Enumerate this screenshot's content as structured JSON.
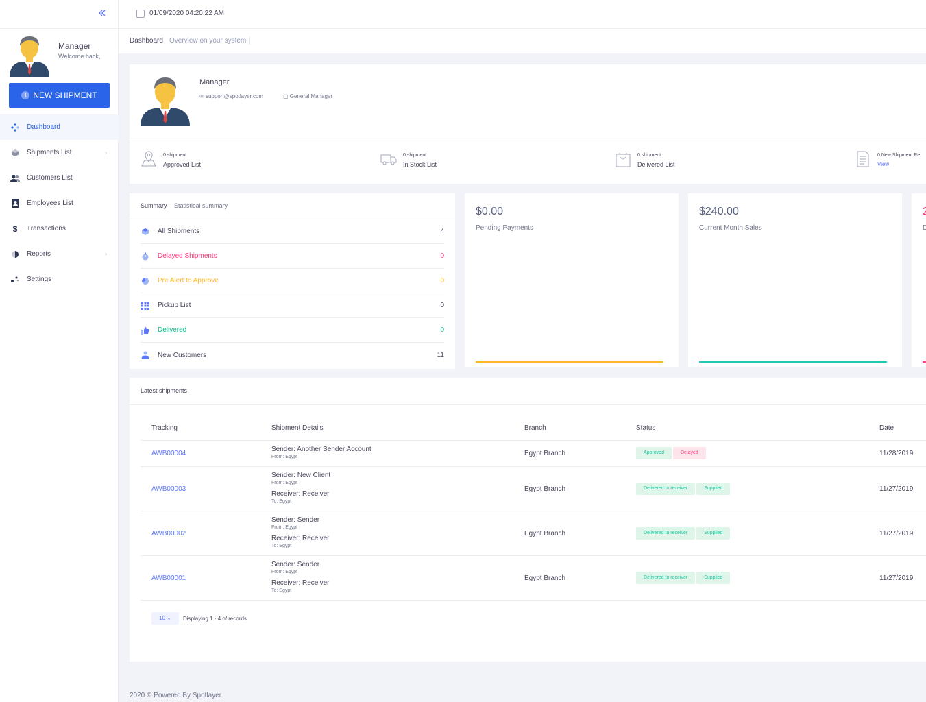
{
  "sidebar": {
    "user_name": "Manager",
    "user_greeting": "Welcome back,",
    "new_shipment_label": "NEW SHIPMENT",
    "menu": [
      {
        "label": "Dashboard",
        "icon": "dashboard-icon",
        "active": true
      },
      {
        "label": "Shipments List",
        "icon": "box-icon",
        "has_submenu": true
      },
      {
        "label": "Customers List",
        "icon": "users-icon"
      },
      {
        "label": "Employees List",
        "icon": "contact-book-icon"
      },
      {
        "label": "Transactions",
        "icon": "dollar-icon"
      },
      {
        "label": "Reports",
        "icon": "pie-chart-icon",
        "has_submenu": true
      },
      {
        "label": "Settings",
        "icon": "settings-dots-icon"
      }
    ]
  },
  "topbar": {
    "datetime": "01/09/2020 04:20:22 AM"
  },
  "subheader": {
    "title": "Dashboard",
    "description": "Overview on your system"
  },
  "profile": {
    "name": "Manager",
    "email": "support@spotlayer.com",
    "role": "General Manager",
    "stats": [
      {
        "count": "0 shipment",
        "label": "Approved List",
        "icon": "map-pin-icon"
      },
      {
        "count": "0 shipment",
        "label": "In Stock List",
        "icon": "truck-icon"
      },
      {
        "count": "0 shipment",
        "label": "Delivered List",
        "icon": "bag-icon"
      },
      {
        "count": "0 New Shipment Re",
        "link": "View",
        "icon": "document-icon"
      }
    ]
  },
  "summary": {
    "title": "Summary",
    "subtitle": "Statistical summary",
    "rows": [
      {
        "label": "All Shipments",
        "value": "4",
        "color": "#48465b",
        "icon": "cube-icon"
      },
      {
        "label": "Delayed Shipments",
        "value": "0",
        "color": "#fd397a",
        "icon": "stopwatch-icon"
      },
      {
        "label": "Pre Alert to Approve",
        "value": "0",
        "color": "#ffb822",
        "icon": "chart-pie-icon"
      },
      {
        "label": "Pickup List",
        "value": "0",
        "color": "#48465b",
        "icon": "grid-icon"
      },
      {
        "label": "Delivered",
        "value": "0",
        "color": "#0abb87",
        "icon": "thumbs-up-icon"
      },
      {
        "label": "New Customers",
        "value": "11",
        "color": "#48465b",
        "icon": "user-icon"
      }
    ]
  },
  "widgets": [
    {
      "value": "$0.00",
      "label": "Pending Payments",
      "line_color": "#ffb822"
    },
    {
      "value": "$240.00",
      "label": "Current Month Sales",
      "line_color": "#1dc9b7"
    },
    {
      "value": "2",
      "label": "D",
      "line_color": "#fd397a"
    }
  ],
  "latest": {
    "title": "Latest shipments",
    "columns": [
      "Tracking",
      "Shipment Details",
      "Branch",
      "Status",
      "Date"
    ],
    "rows": [
      {
        "tracking": "AWB00004",
        "sender": "Sender: Another Sender Account",
        "from": "From: Egypt",
        "branch": "Egypt Branch",
        "badges": [
          {
            "text": "Approved",
            "type": "green"
          },
          {
            "text": "Delayed",
            "type": "red"
          }
        ],
        "date": "11/28/2019"
      },
      {
        "tracking": "AWB00003",
        "sender": "Sender: New Client",
        "from": "From: Egypt",
        "receiver": "Receiver: Receiver",
        "to": "To: Egypt",
        "branch": "Egypt Branch",
        "badges": [
          {
            "text": "Delivered to receiver",
            "type": "green"
          },
          {
            "text": "Supplied",
            "type": "green"
          }
        ],
        "date": "11/27/2019"
      },
      {
        "tracking": "AWB00002",
        "sender": "Sender: Sender",
        "from": "From: Egypt",
        "receiver": "Receiver: Receiver",
        "to": "To: Egypt",
        "branch": "Egypt Branch",
        "badges": [
          {
            "text": "Delivered to receiver",
            "type": "green"
          },
          {
            "text": "Supplied",
            "type": "green"
          }
        ],
        "date": "11/27/2019"
      },
      {
        "tracking": "AWB00001",
        "sender": "Sender: Sender",
        "from": "From: Egypt",
        "receiver": "Receiver: Receiver",
        "to": "To: Egypt",
        "branch": "Egypt Branch",
        "badges": [
          {
            "text": "Delivered to receiver",
            "type": "green"
          },
          {
            "text": "Supplied",
            "type": "green"
          }
        ],
        "date": "11/27/2019"
      }
    ],
    "page_size": "10",
    "page_info": "Displaying 1 - 4 of records"
  },
  "footer": {
    "text": "2020 © Powered By Spotlayer."
  }
}
